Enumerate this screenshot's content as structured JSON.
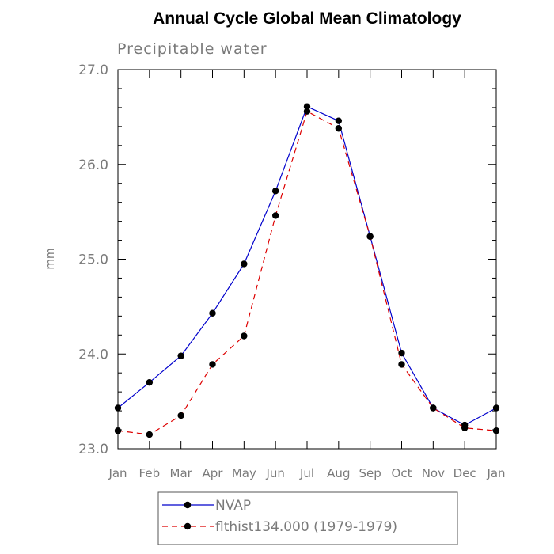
{
  "chart_data": {
    "type": "line",
    "title": "Annual Cycle Global Mean Climatology",
    "subtitle": "Precipitable water",
    "xlabel": "",
    "ylabel": "mm",
    "categories": [
      "Jan",
      "Feb",
      "Mar",
      "Apr",
      "May",
      "Jun",
      "Jul",
      "Aug",
      "Sep",
      "Oct",
      "Nov",
      "Dec",
      "Jan"
    ],
    "ylim": [
      23.0,
      27.0
    ],
    "yticks": [
      "23.0",
      "24.0",
      "25.0",
      "26.0",
      "27.0"
    ],
    "grid": false,
    "legend_position": "bottom",
    "series": [
      {
        "name": "NVAP",
        "color": "#0000cc",
        "line_style": "solid",
        "marker": "filled-circle",
        "values": [
          23.43,
          23.7,
          23.98,
          24.43,
          24.95,
          25.72,
          26.61,
          26.46,
          25.24,
          24.01,
          23.43,
          23.25,
          23.43
        ]
      },
      {
        "name": "flthist134.000 (1979-1979)",
        "color": "#dd0000",
        "line_style": "dashed",
        "marker": "filled-circle",
        "values": [
          23.19,
          23.15,
          23.35,
          23.89,
          24.19,
          25.46,
          26.56,
          26.38,
          25.24,
          23.89,
          23.43,
          23.22,
          23.19
        ]
      }
    ]
  }
}
